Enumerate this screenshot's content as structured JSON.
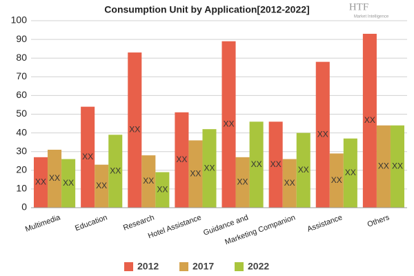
{
  "chart_data": {
    "type": "bar",
    "title": "Consumption Unit by  Application[2012-2022]",
    "logo": "HTF",
    "logo_subtitle": "Market Intelligence",
    "categories": [
      "Multimedia",
      "Education",
      "Research",
      "Hotel Assistance",
      "Guidance and",
      "Marketing Companion",
      "Assistance",
      "Others"
    ],
    "series": [
      {
        "name": "2012",
        "color": "#e8604a",
        "values": [
          27,
          54,
          83,
          51,
          89,
          46,
          78,
          93
        ]
      },
      {
        "name": "2017",
        "color": "#d4a24c",
        "values": [
          31,
          23,
          28,
          36,
          27,
          26,
          29,
          44
        ]
      },
      {
        "name": "2022",
        "color": "#a9c53d",
        "values": [
          26,
          39,
          19,
          42,
          46,
          40,
          37,
          44
        ]
      }
    ],
    "data_label_text": "XX",
    "ylim": [
      0,
      100
    ],
    "yticks": [
      0,
      10,
      20,
      30,
      40,
      50,
      60,
      70,
      80,
      90,
      100
    ],
    "grid": true,
    "legend": "bottom"
  }
}
